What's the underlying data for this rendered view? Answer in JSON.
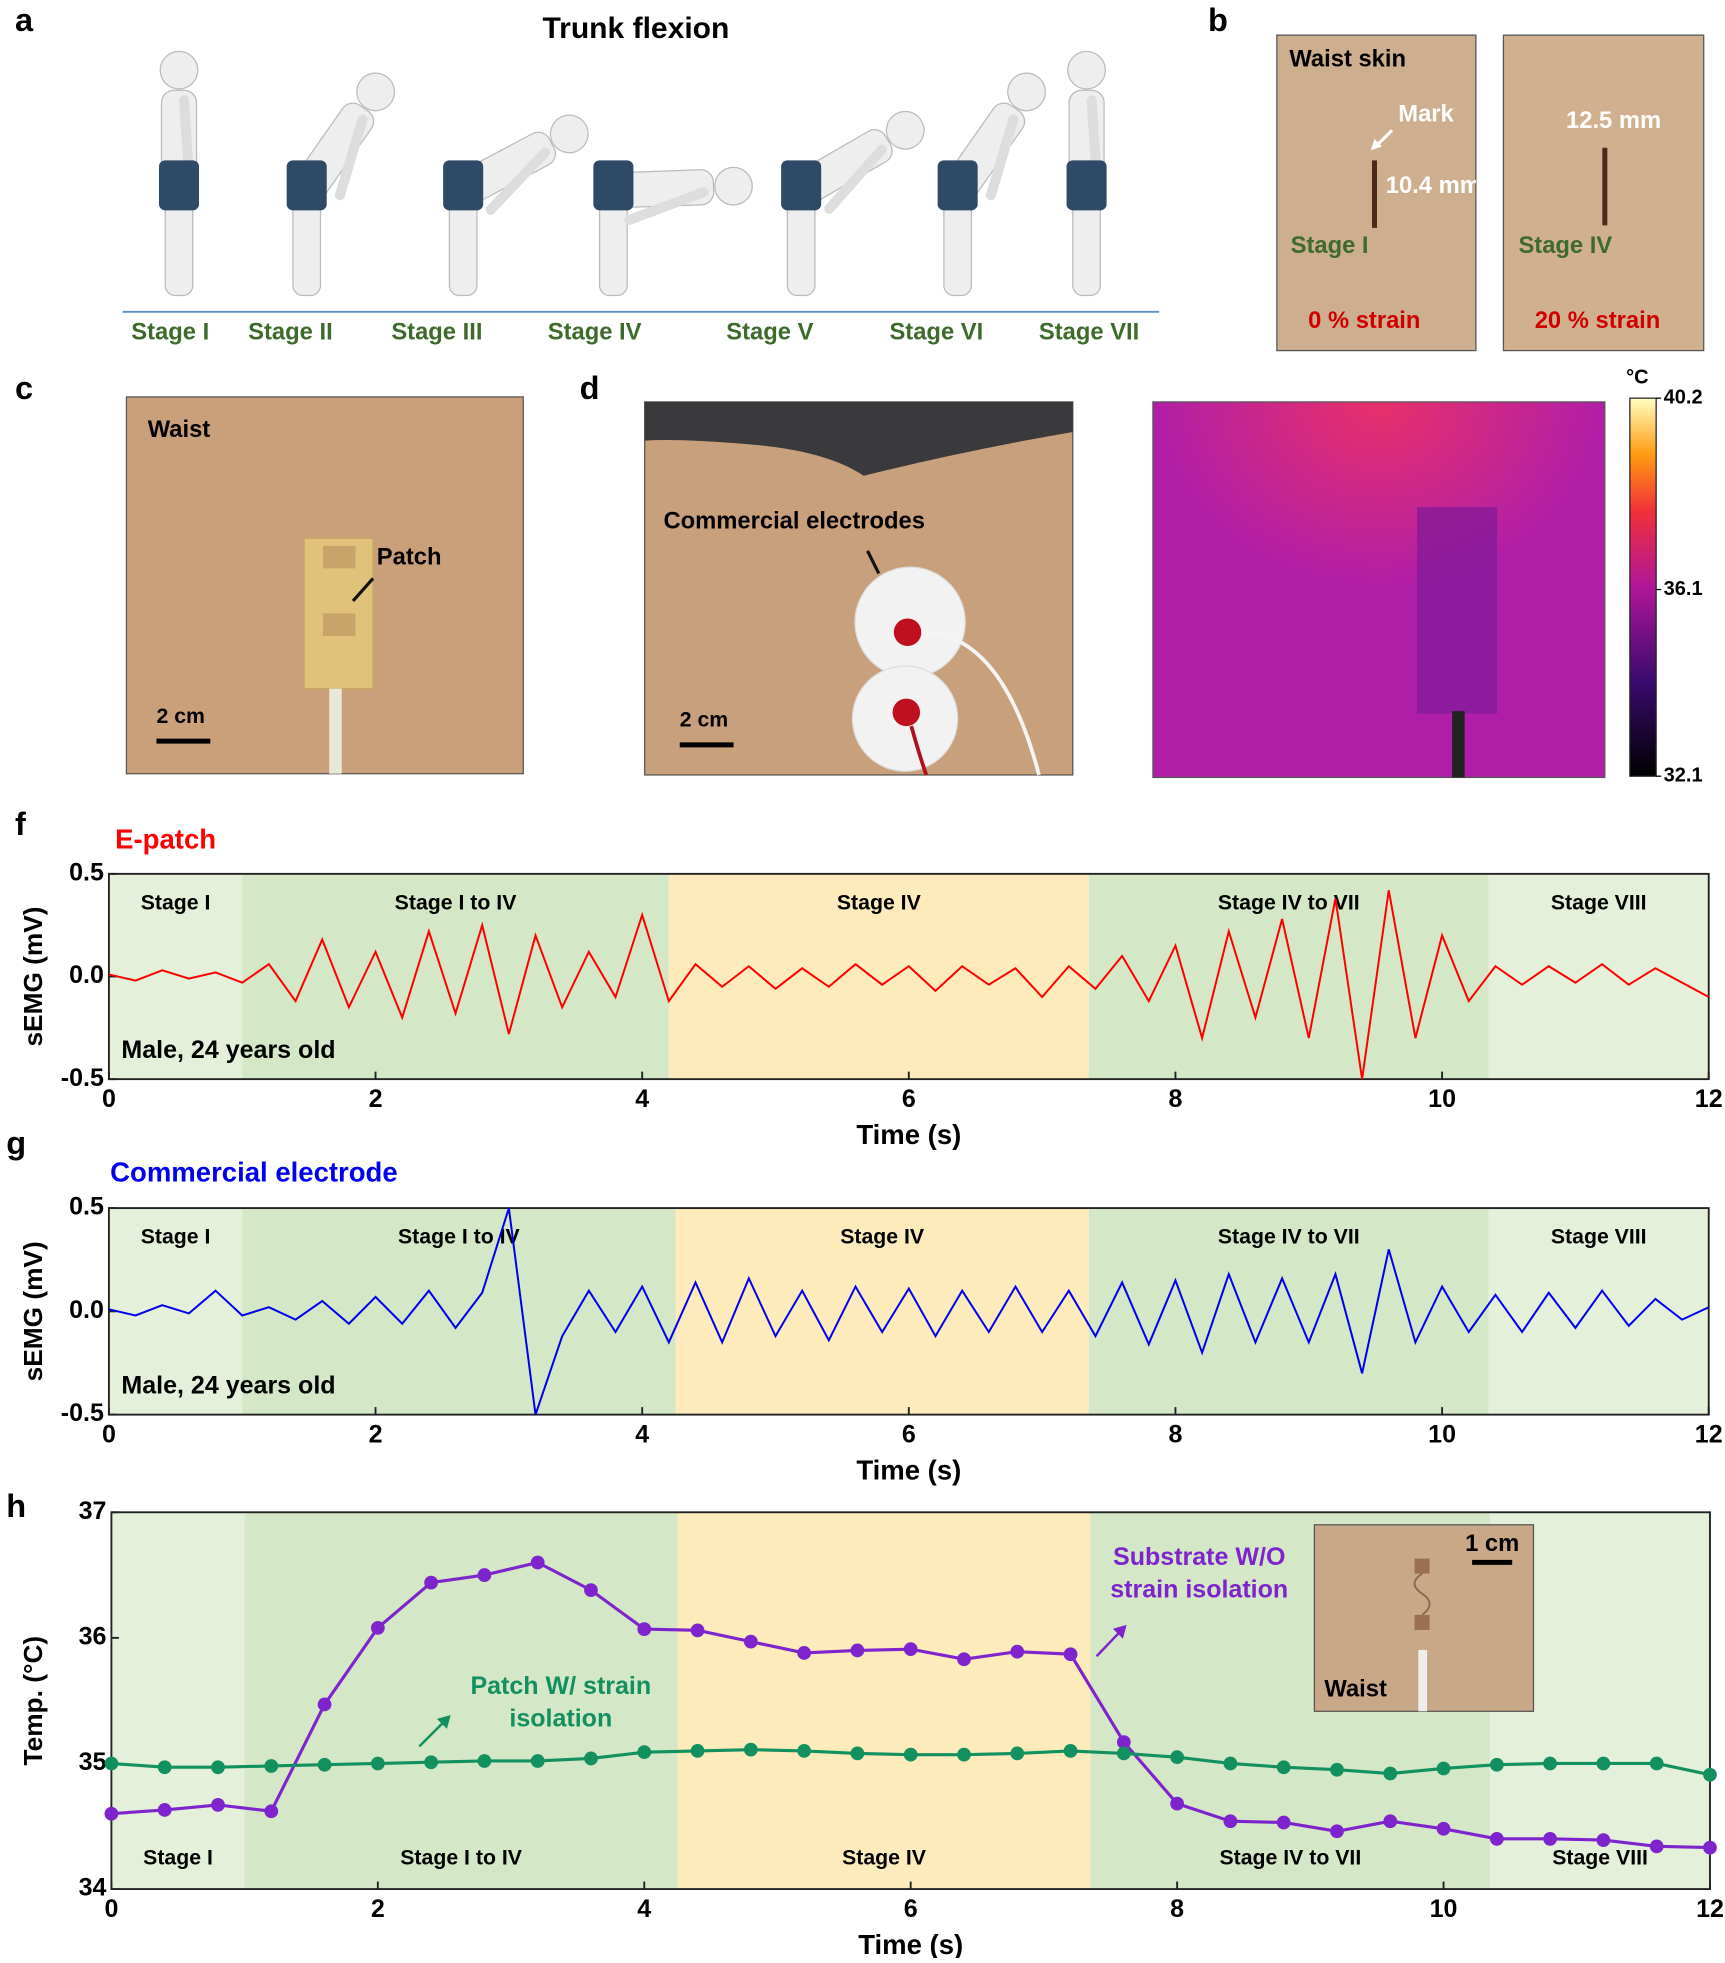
{
  "panel_a": {
    "label": "a",
    "title": "Trunk flexion",
    "stages": [
      "Stage I",
      "Stage II",
      "Stage III",
      "Stage IV",
      "Stage V",
      "Stage VI",
      "Stage VII"
    ]
  },
  "panel_b": {
    "label": "b",
    "title": "Waist skin",
    "mark": "Mark",
    "photos": [
      {
        "length": "10.4 mm",
        "stage": "Stage I",
        "strain": "0 % strain"
      },
      {
        "length": "12.5 mm",
        "stage": "Stage IV",
        "strain": "20 % strain"
      }
    ]
  },
  "panel_c": {
    "label": "c",
    "site": "Waist",
    "callout": "Patch",
    "scale_bar": "2 cm"
  },
  "panel_d": {
    "label": "d",
    "callout": "Commercial electrodes",
    "scale_bar": "2 cm",
    "colorbar": {
      "unit": "°C",
      "range": [
        32.1,
        40.2
      ],
      "ticks": [
        40.2,
        36.1,
        32.1
      ]
    }
  },
  "chart_data": [
    {
      "type": "line",
      "panel": "f",
      "xlabel": "Time (s)",
      "ylabel": "sEMG (mV)",
      "annotation": "Male, 24 years old",
      "xlim": [
        0,
        12
      ],
      "xticks": [
        0,
        2,
        4,
        6,
        8,
        10,
        12
      ],
      "ylim": [
        -0.5,
        0.5
      ],
      "yticks": [
        -0.5,
        {
          "value": 0,
          "label": "0.0"
        },
        0.5
      ],
      "regions": [
        {
          "label": "Stage I",
          "start": 0,
          "end": 1,
          "color": "#e4f0da"
        },
        {
          "label": "Stage I to IV",
          "start": 1,
          "end": 4.2,
          "color": "#d4e7c6"
        },
        {
          "label": "Stage IV",
          "start": 4.2,
          "end": 7.35,
          "color": "#fdebbb"
        },
        {
          "label": "Stage IV to VII",
          "start": 7.35,
          "end": 10.35,
          "color": "#d4e7c6"
        },
        {
          "label": "Stage VIII",
          "start": 10.35,
          "end": 12,
          "color": "#e4f0da"
        }
      ],
      "x": [
        0,
        0.2,
        0.4,
        0.6,
        0.8,
        1,
        1.2,
        1.4,
        1.6,
        1.8,
        2,
        2.2,
        2.4,
        2.6,
        2.8,
        3,
        3.2,
        3.4,
        3.6,
        3.8,
        4,
        4.2,
        4.4,
        4.6,
        4.8,
        5,
        5.2,
        5.4,
        5.6,
        5.8,
        6,
        6.2,
        6.4,
        6.6,
        6.8,
        7,
        7.2,
        7.4,
        7.6,
        7.8,
        8,
        8.2,
        8.4,
        8.6,
        8.8,
        9,
        9.2,
        9.4,
        9.6,
        9.8,
        10,
        10.2,
        10.4,
        10.6,
        10.8,
        11,
        11.2,
        11.4,
        11.6,
        11.8,
        12
      ],
      "series": [
        {
          "name": "E-patch",
          "color": "#ff0000",
          "values": [
            0.01,
            -0.02,
            0.03,
            -0.01,
            0.02,
            -0.03,
            0.06,
            -0.12,
            0.18,
            -0.15,
            0.12,
            -0.2,
            0.22,
            -0.18,
            0.25,
            -0.28,
            0.2,
            -0.15,
            0.12,
            -0.1,
            0.3,
            -0.12,
            0.06,
            -0.05,
            0.05,
            -0.06,
            0.04,
            -0.05,
            0.06,
            -0.04,
            0.05,
            -0.07,
            0.05,
            -0.04,
            0.04,
            -0.1,
            0.05,
            -0.06,
            0.1,
            -0.12,
            0.15,
            -0.3,
            0.22,
            -0.2,
            0.28,
            -0.3,
            0.38,
            -0.5,
            0.42,
            -0.3,
            0.2,
            -0.12,
            0.05,
            -0.04,
            0.05,
            -0.03,
            0.06,
            -0.04,
            0.04,
            -0.03,
            -0.1
          ]
        }
      ]
    },
    {
      "type": "line",
      "panel": "g",
      "xlabel": "Time (s)",
      "ylabel": "sEMG (mV)",
      "annotation": "Male, 24 years old",
      "xlim": [
        0,
        12
      ],
      "xticks": [
        0,
        2,
        4,
        6,
        8,
        10,
        12
      ],
      "ylim": [
        -0.5,
        0.5
      ],
      "yticks": [
        -0.5,
        {
          "value": 0,
          "label": "0.0"
        },
        0.5
      ],
      "regions": [
        {
          "label": "Stage I",
          "start": 0,
          "end": 1,
          "color": "#e4f0da"
        },
        {
          "label": "Stage I to IV",
          "start": 1,
          "end": 4.25,
          "color": "#d4e7c6"
        },
        {
          "label": "Stage IV",
          "start": 4.25,
          "end": 7.35,
          "color": "#fdebbb"
        },
        {
          "label": "Stage IV to VII",
          "start": 7.35,
          "end": 10.35,
          "color": "#d4e7c6"
        },
        {
          "label": "Stage VIII",
          "start": 10.35,
          "end": 12,
          "color": "#e4f0da"
        }
      ],
      "x": [
        0,
        0.2,
        0.4,
        0.6,
        0.8,
        1,
        1.2,
        1.4,
        1.6,
        1.8,
        2,
        2.2,
        2.4,
        2.6,
        2.8,
        3,
        3.2,
        3.4,
        3.6,
        3.8,
        4,
        4.2,
        4.4,
        4.6,
        4.8,
        5,
        5.2,
        5.4,
        5.6,
        5.8,
        6,
        6.2,
        6.4,
        6.6,
        6.8,
        7,
        7.2,
        7.4,
        7.6,
        7.8,
        8,
        8.2,
        8.4,
        8.6,
        8.8,
        9,
        9.2,
        9.4,
        9.6,
        9.8,
        10,
        10.2,
        10.4,
        10.6,
        10.8,
        11,
        11.2,
        11.4,
        11.6,
        11.8,
        12
      ],
      "series": [
        {
          "name": "Commercial electrode",
          "color": "#0000ee",
          "values": [
            0.01,
            -0.02,
            0.03,
            -0.01,
            0.1,
            -0.02,
            0.02,
            -0.04,
            0.05,
            -0.06,
            0.07,
            -0.06,
            0.1,
            -0.08,
            0.09,
            0.5,
            -0.5,
            -0.12,
            0.1,
            -0.1,
            0.12,
            -0.15,
            0.14,
            -0.15,
            0.16,
            -0.12,
            0.1,
            -0.14,
            0.12,
            -0.1,
            0.11,
            -0.12,
            0.1,
            -0.1,
            0.12,
            -0.1,
            0.1,
            -0.12,
            0.14,
            -0.16,
            0.15,
            -0.2,
            0.18,
            -0.15,
            0.16,
            -0.15,
            0.18,
            -0.3,
            0.3,
            -0.15,
            0.12,
            -0.1,
            0.08,
            -0.1,
            0.09,
            -0.08,
            0.1,
            -0.07,
            0.06,
            -0.04,
            0.02
          ]
        }
      ]
    },
    {
      "type": "line",
      "panel": "h",
      "xlabel": "Time (s)",
      "ylabel": "Temp. (°C)",
      "markers": true,
      "xlim": [
        0,
        12
      ],
      "xticks": [
        0,
        2,
        4,
        6,
        8,
        10,
        12
      ],
      "ylim": [
        34,
        37
      ],
      "yticks": [
        34,
        35,
        36,
        37
      ],
      "regions": [
        {
          "label": "Stage I",
          "start": 0,
          "end": 1,
          "color": "#e4f0da"
        },
        {
          "label": "Stage I to IV",
          "start": 1,
          "end": 4.25,
          "color": "#d4e7c6"
        },
        {
          "label": "Stage IV",
          "start": 4.25,
          "end": 7.35,
          "color": "#fdebbb"
        },
        {
          "label": "Stage IV to VII",
          "start": 7.35,
          "end": 10.35,
          "color": "#d4e7c6"
        },
        {
          "label": "Stage VIII",
          "start": 10.35,
          "end": 12,
          "color": "#e4f0da"
        }
      ],
      "x": [
        0,
        0.4,
        0.8,
        1.2,
        1.6,
        2,
        2.4,
        2.8,
        3.2,
        3.6,
        4,
        4.4,
        4.8,
        5.2,
        5.6,
        6,
        6.4,
        6.8,
        7.2,
        7.6,
        8,
        8.4,
        8.8,
        9.2,
        9.6,
        10,
        10.4,
        10.8,
        11.2,
        11.6,
        12
      ],
      "series": [
        {
          "name_lines": [
            "Substrate W/O",
            "strain isolation"
          ],
          "color": "#7f24cc",
          "values": [
            34.6,
            34.63,
            34.67,
            34.62,
            35.47,
            36.08,
            36.44,
            36.5,
            36.6,
            36.38,
            36.07,
            36.06,
            35.97,
            35.88,
            35.9,
            35.91,
            35.83,
            35.89,
            35.87,
            35.17,
            34.68,
            34.54,
            34.53,
            34.46,
            34.54,
            34.48,
            34.4,
            34.4,
            34.39,
            34.34,
            34.33
          ]
        },
        {
          "name_lines": [
            "Patch W/ strain",
            "isolation"
          ],
          "color": "#139060",
          "values": [
            35.0,
            34.97,
            34.97,
            34.98,
            34.99,
            35.0,
            35.01,
            35.02,
            35.02,
            35.04,
            35.09,
            35.1,
            35.11,
            35.1,
            35.08,
            35.07,
            35.07,
            35.08,
            35.1,
            35.08,
            35.05,
            35.0,
            34.97,
            34.95,
            34.92,
            34.96,
            34.99,
            35.0,
            35.0,
            35.0,
            34.91
          ]
        }
      ],
      "inset": {
        "scale_bar": "1 cm",
        "site": "Waist"
      }
    }
  ]
}
